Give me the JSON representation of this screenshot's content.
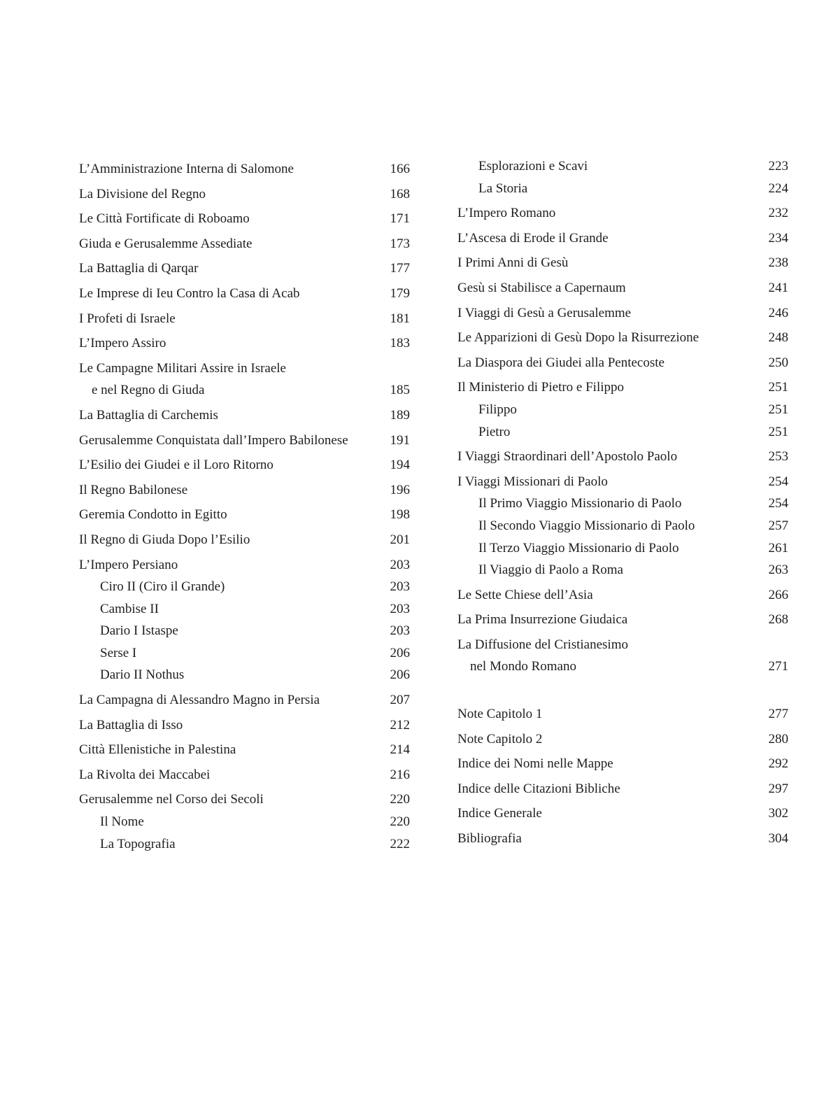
{
  "columns": [
    {
      "entries": [
        {
          "title": "L’Amministrazione Interna di Salomone",
          "page": "166",
          "level": 1
        },
        {
          "title": "La Divisione del Regno",
          "page": "168",
          "level": 1
        },
        {
          "title": "Le Città Fortificate di Roboamo",
          "page": "171",
          "level": 1
        },
        {
          "title": "Giuda e Gerusalemme Assediate",
          "page": "173",
          "level": 1
        },
        {
          "title": "La Battaglia di Qarqar",
          "page": "177",
          "level": 1
        },
        {
          "title": "Le Imprese di Ieu Contro la Casa di Acab",
          "page": "179",
          "level": 1
        },
        {
          "title": "I Profeti di Israele",
          "page": "181",
          "level": 1
        },
        {
          "title": "L’Impero Assiro",
          "page": "183",
          "level": 1
        },
        {
          "title": "Le Campagne Militari Assire in Israele",
          "title_cont": "e nel Regno di Giuda",
          "page": "185",
          "level": 1
        },
        {
          "title": "La Battaglia di Carchemis",
          "page": "189",
          "level": 1
        },
        {
          "title": "Gerusalemme Conquistata dall’Impero Babilonese",
          "page": "191",
          "level": 1
        },
        {
          "title": "L’Esilio dei Giudei e il Loro Ritorno",
          "page": "194",
          "level": 1
        },
        {
          "title": "Il Regno Babilonese",
          "page": "196",
          "level": 1
        },
        {
          "title": "Geremia Condotto in Egitto",
          "page": "198",
          "level": 1
        },
        {
          "title": "Il Regno di Giuda Dopo l’Esilio",
          "page": "201",
          "level": 1
        },
        {
          "title": "L’Impero Persiano",
          "page": "203",
          "level": 1
        },
        {
          "title": "Ciro II (Ciro il Grande)",
          "page": "203",
          "level": 2
        },
        {
          "title": "Cambise II",
          "page": "203",
          "level": 2
        },
        {
          "title": "Dario I Istaspe",
          "page": "203",
          "level": 2
        },
        {
          "title": "Serse I",
          "page": "206",
          "level": 2
        },
        {
          "title": "Dario II Nothus",
          "page": "206",
          "level": 2
        },
        {
          "title": "La Campagna di Alessandro Magno in Persia",
          "page": "207",
          "level": 1
        },
        {
          "title": "La Battaglia di Isso",
          "page": "212",
          "level": 1
        },
        {
          "title": "Città Ellenistiche in Palestina",
          "page": "214",
          "level": 1
        },
        {
          "title": "La Rivolta dei Maccabei",
          "page": "216",
          "level": 1
        },
        {
          "title": "Gerusalemme nel Corso dei Secoli",
          "page": "220",
          "level": 1
        },
        {
          "title": "Il Nome",
          "page": "220",
          "level": 2
        },
        {
          "title": "La Topografia",
          "page": "222",
          "level": 2
        }
      ]
    },
    {
      "entries": [
        {
          "title": "Esplorazioni e Scavi",
          "page": "223",
          "level": 2
        },
        {
          "title": "La Storia",
          "page": "224",
          "level": 2
        },
        {
          "title": "L’Impero Romano",
          "page": "232",
          "level": 1
        },
        {
          "title": "L’Ascesa di Erode il Grande",
          "page": "234",
          "level": 1
        },
        {
          "title": "I Primi Anni di Gesù",
          "page": "238",
          "level": 1
        },
        {
          "title": "Gesù si Stabilisce a Capernaum",
          "page": "241",
          "level": 1
        },
        {
          "title": "I Viaggi di Gesù a Gerusalemme",
          "page": "246",
          "level": 1
        },
        {
          "title": "Le Apparizioni di Gesù Dopo la Risurrezione",
          "page": "248",
          "level": 1
        },
        {
          "title": "La Diaspora dei Giudei alla Pentecoste",
          "page": "250",
          "level": 1
        },
        {
          "title": "Il Ministerio di Pietro e Filippo",
          "page": "251",
          "level": 1
        },
        {
          "title": "Filippo",
          "page": "251",
          "level": 2
        },
        {
          "title": "Pietro",
          "page": "251",
          "level": 2
        },
        {
          "title": "I Viaggi Straordinari dell’Apostolo Paolo",
          "page": "253",
          "level": 1
        },
        {
          "title": "I Viaggi Missionari di Paolo",
          "page": "254",
          "level": 1
        },
        {
          "title": "Il Primo Viaggio Missionario di Paolo",
          "page": "254",
          "level": 2
        },
        {
          "title": "Il Secondo Viaggio Missionario di Paolo",
          "page": "257",
          "level": 2
        },
        {
          "title": "Il Terzo Viaggio Missionario di Paolo",
          "page": "261",
          "level": 2
        },
        {
          "title": "Il Viaggio di Paolo a Roma",
          "page": "263",
          "level": 2
        },
        {
          "title": "Le Sette Chiese dell’Asia",
          "page": "266",
          "level": 1
        },
        {
          "title": "La Prima Insurrezione Giudaica",
          "page": "268",
          "level": 1
        },
        {
          "title": "La Diffusione del Cristianesimo",
          "title_cont": "nel Mondo Romano",
          "page": "271",
          "level": 1
        },
        {
          "title": "Note Capitolo 1",
          "page": "277",
          "level": 1,
          "section_break": true
        },
        {
          "title": "Note Capitolo 2",
          "page": "280",
          "level": 1
        },
        {
          "title": "Indice dei Nomi nelle  Mappe",
          "page": "292",
          "level": 1
        },
        {
          "title": "Indice delle Citazioni Bibliche",
          "page": "297",
          "level": 1
        },
        {
          "title": "Indice Generale",
          "page": "302",
          "level": 1
        },
        {
          "title": "Bibliografia",
          "page": "304",
          "level": 1
        }
      ]
    }
  ]
}
